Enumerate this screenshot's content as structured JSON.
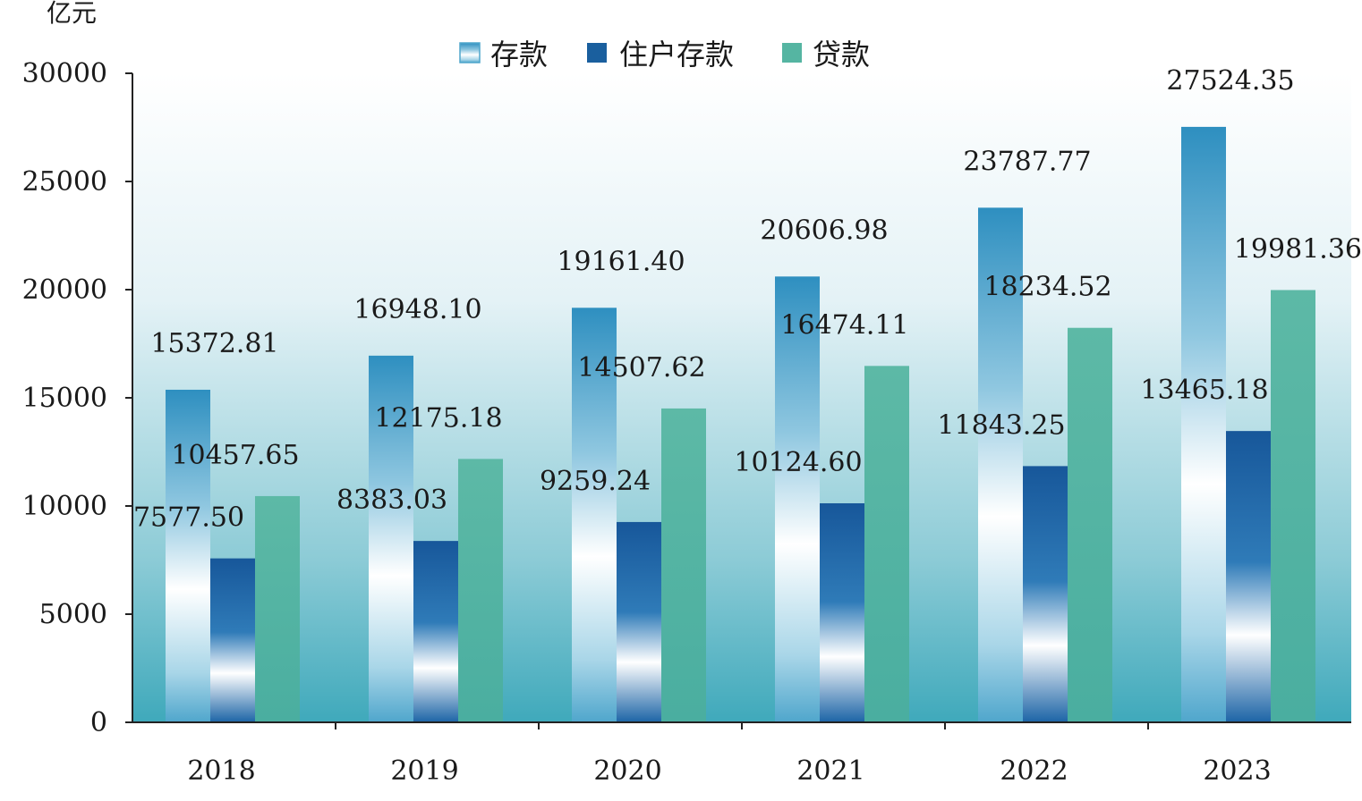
{
  "chart_data": {
    "type": "bar",
    "ylabel": "亿元",
    "ylim": [
      0,
      30000
    ],
    "yticks": [
      0,
      5000,
      10000,
      15000,
      20000,
      25000,
      30000
    ],
    "categories": [
      "2018",
      "2019",
      "2020",
      "2021",
      "2022",
      "2023"
    ],
    "series": [
      {
        "name": "存款",
        "color": "#2e8fc0",
        "values": [
          15372.81,
          16948.1,
          19161.4,
          20606.98,
          23787.77,
          27524.35
        ],
        "labels": [
          "15372.81",
          "16948.10",
          "19161.40",
          "20606.98",
          "23787.77",
          "27524.35"
        ]
      },
      {
        "name": "住户存款",
        "color": "#1a5f9e",
        "values": [
          7577.5,
          8383.03,
          9259.24,
          10124.6,
          11843.25,
          13465.18
        ],
        "labels": [
          "7577.50",
          "8383.03",
          "9259.24",
          "10124.60",
          "11843.25",
          "13465.18"
        ]
      },
      {
        "name": "贷款",
        "color": "#55b5a2",
        "values": [
          10457.65,
          12175.18,
          14507.62,
          16474.11,
          18234.52,
          19981.36
        ],
        "labels": [
          "10457.65",
          "12175.18",
          "14507.62",
          "16474.11",
          "18234.52",
          "19981.36"
        ]
      }
    ],
    "legend": "top-center",
    "grid": false
  }
}
